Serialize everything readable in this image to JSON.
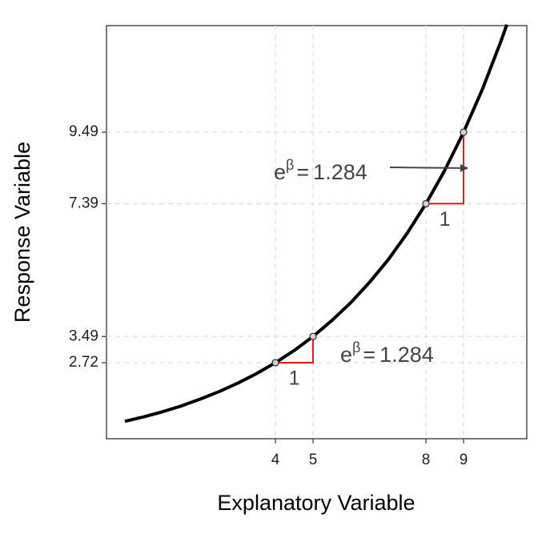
{
  "chart_data": {
    "type": "line",
    "x_label": "Explanatory Variable",
    "y_label": "Response Variable",
    "x": [
      0,
      0.5,
      1,
      1.5,
      2,
      2.5,
      3,
      3.5,
      4,
      4.5,
      5,
      5.5,
      6,
      6.5,
      7,
      7.5,
      8,
      8.5,
      9,
      9.5,
      10,
      10.15
    ],
    "values": [
      1,
      1.13,
      1.28,
      1.45,
      1.65,
      1.87,
      2.12,
      2.4,
      2.72,
      3.08,
      3.49,
      3.96,
      4.48,
      5.08,
      5.75,
      6.52,
      7.39,
      8.37,
      9.49,
      10.75,
      12.18,
      12.65
    ],
    "color": "#000000",
    "points": {
      "x": [
        4,
        5,
        8,
        9
      ],
      "values": [
        2.72,
        3.49,
        7.39,
        9.49
      ],
      "color": "#d3d3d3"
    },
    "triangles": [
      {
        "x": [
          4,
          5
        ],
        "y": [
          2.72,
          3.49
        ],
        "run_label": 1
      },
      {
        "x": [
          8,
          9
        ],
        "y": [
          7.39,
          9.49
        ],
        "run_label": 1
      }
    ],
    "triangle_color": "#e8141c",
    "annotations": [
      {
        "base": "e",
        "sup": "β",
        "relation": "=",
        "value": 1.284
      },
      {
        "base": "e",
        "sup": "β",
        "relation": "=",
        "value": 1.284
      }
    ],
    "xlim": [
      -0.49,
      10.68
    ],
    "ylim": [
      0.487,
      12.62
    ],
    "xticks": [
      4,
      5,
      8,
      9
    ],
    "yticks": [
      2.72,
      3.49,
      7.39,
      9.49
    ],
    "grid": true
  }
}
